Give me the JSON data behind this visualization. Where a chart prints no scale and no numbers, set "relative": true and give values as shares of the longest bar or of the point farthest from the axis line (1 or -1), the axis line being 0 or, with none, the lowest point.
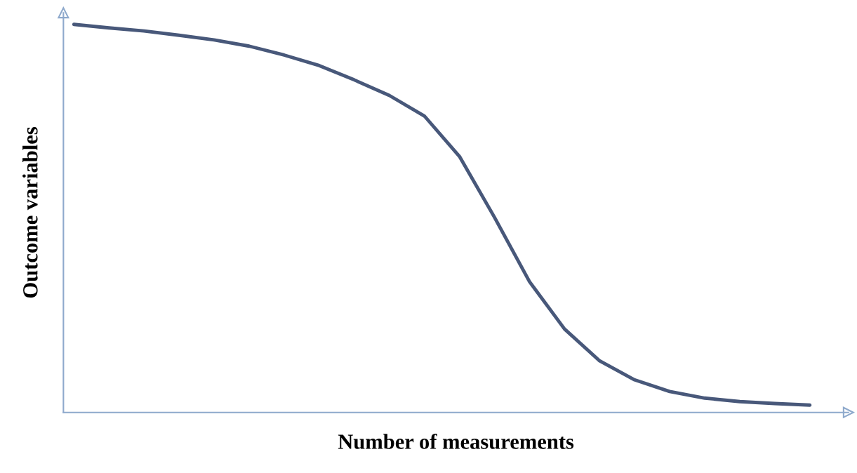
{
  "chart_data": {
    "type": "line",
    "relative": true,
    "xlabel": "Number of measurements",
    "ylabel": "Outcome variables",
    "categories": [
      null,
      null,
      null,
      null,
      null,
      null,
      null,
      null,
      null,
      null,
      null,
      null,
      null,
      null,
      null,
      null,
      null,
      null,
      null,
      null,
      null,
      null
    ],
    "series": [
      {
        "color": "#48587a",
        "values": [
          1.0,
          0.991,
          0.983,
          0.972,
          0.96,
          0.944,
          0.921,
          0.894,
          0.857,
          0.817,
          0.764,
          0.66,
          0.503,
          0.337,
          0.215,
          0.133,
          0.084,
          0.054,
          0.037,
          0.028,
          0.023,
          0.019
        ]
      }
    ],
    "tick_labels": false,
    "marker": "none",
    "line_style": "solid"
  }
}
